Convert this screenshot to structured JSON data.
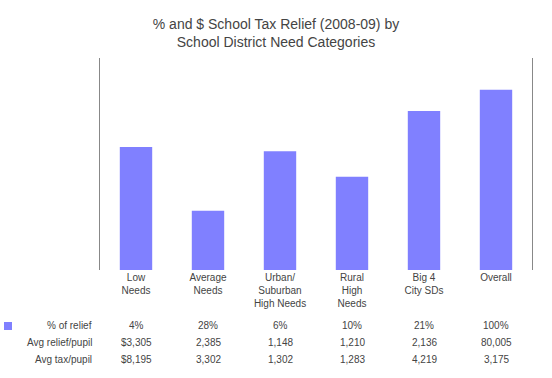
{
  "chart_data": {
    "type": "bar",
    "title": "% and $ School Tax Relief (2008-09) by\nSchool District Need Categories",
    "categories": [
      "Low\nNeeds",
      "Average\nNeeds",
      "Urban/\nSuburban\nHigh Needs",
      "Rural\nHigh\nNeeds",
      "Big 4\nCity SDs",
      "Overall"
    ],
    "values": [
      58,
      28,
      56,
      44,
      75,
      85
    ],
    "color": "#8080ff",
    "ylim": [
      0,
      100
    ],
    "grid": false,
    "tick_labels": "x",
    "table": {
      "row_labels": [
        "% of relief",
        "Avg relief/pupil",
        "Avg tax/pupil"
      ],
      "cells": [
        [
          "4%",
          "28%",
          "6%",
          "10%",
          "21%",
          "100%"
        ],
        [
          "$3,305",
          "2,385",
          "1,148",
          "1,210",
          "2,136",
          "80,005"
        ],
        [
          "$8,195",
          "3,302",
          "1,302",
          "1,283",
          "4,219",
          "3,175"
        ]
      ]
    }
  }
}
